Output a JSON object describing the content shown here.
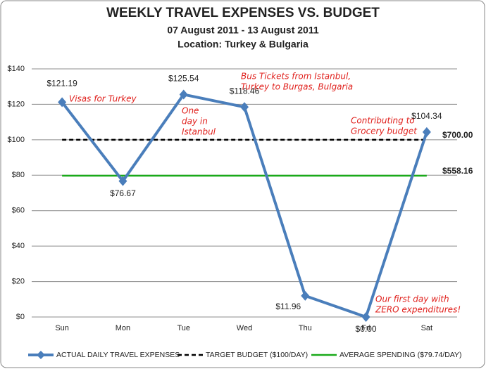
{
  "chart_data": {
    "type": "line",
    "title": "WEEKLY TRAVEL EXPENSES VS. BUDGET",
    "subtitle": "07 August 2011 - 13 August 2011",
    "location": "Location: Turkey & Bulgaria",
    "categories": [
      "Sun",
      "Mon",
      "Tue",
      "Wed",
      "Thu",
      "Fri",
      "Sat"
    ],
    "ylim": [
      0,
      140
    ],
    "yticks": [
      {
        "value": 0,
        "label": "$0"
      },
      {
        "value": 20,
        "label": "$20"
      },
      {
        "value": 40,
        "label": "$40"
      },
      {
        "value": 60,
        "label": "$60"
      },
      {
        "value": 80,
        "label": "$80"
      },
      {
        "value": 100,
        "label": "$100"
      },
      {
        "value": 120,
        "label": "$120"
      },
      {
        "value": 140,
        "label": "$140"
      }
    ],
    "grid": true,
    "series": [
      {
        "name": "ACTUAL DAILY TRAVEL EXPENSES",
        "color": "#4a7ebb",
        "style": "solid-marker",
        "values": [
          121.19,
          76.67,
          125.54,
          118.46,
          11.96,
          0,
          104.34
        ],
        "value_labels": [
          "$121.19",
          "$76.67",
          "$125.54",
          "$118.46",
          "$11.96",
          "$0.00",
          "$104.34"
        ]
      },
      {
        "name": "TARGET BUDGET ($100/DAY)",
        "color": "#000000",
        "style": "dashed",
        "values": [
          100,
          100,
          100,
          100,
          100,
          100,
          100
        ],
        "end_label": "$700.00"
      },
      {
        "name": "AVERAGE SPENDING ($79.74/DAY)",
        "color": "#1aaa1a",
        "style": "solid",
        "values": [
          79.74,
          79.74,
          79.74,
          79.74,
          79.74,
          79.74,
          79.74
        ],
        "end_label": "$558.16"
      }
    ],
    "annotations": [
      {
        "lines": [
          "Visas for Turkey"
        ]
      },
      {
        "lines": [
          "One",
          "day in",
          "Istanbul"
        ]
      },
      {
        "lines": [
          "Bus Tickets from Istanbul,",
          "Turkey to Burgas, Bulgaria"
        ]
      },
      {
        "lines": [
          "Contributing to",
          "Grocery budget"
        ]
      },
      {
        "lines": [
          "Our first day with",
          "ZERO expenditures!"
        ]
      }
    ]
  }
}
